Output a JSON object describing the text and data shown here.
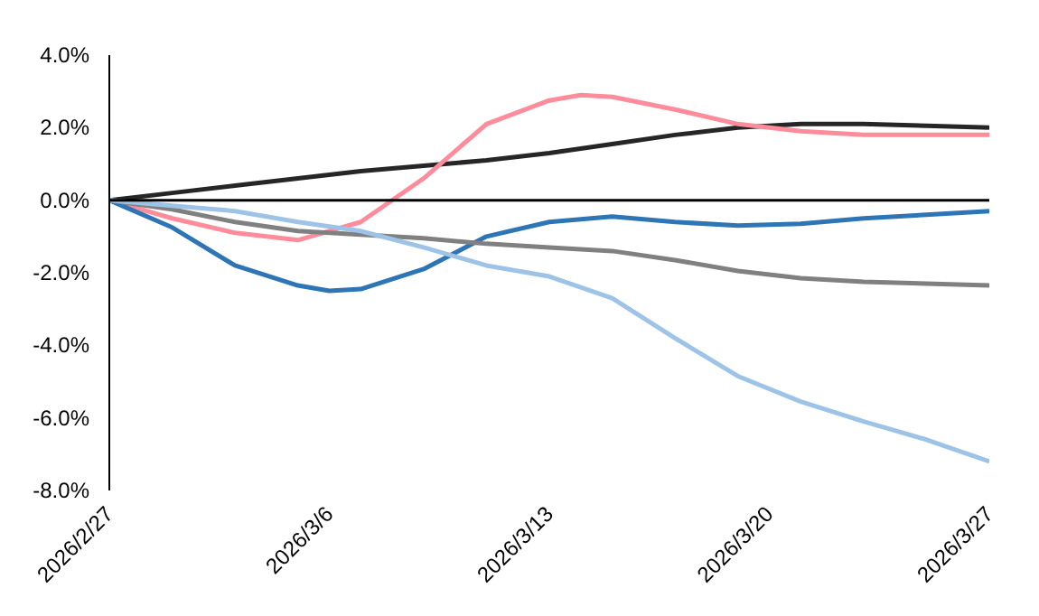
{
  "chart_data": {
    "type": "line",
    "xlim": [
      "2026-02-27",
      "2026-03-27"
    ],
    "xticks": [
      {
        "value": "2026-02-27",
        "label": "2026/2/27"
      },
      {
        "value": "2026-03-06",
        "label": "2026/3/6"
      },
      {
        "value": "2026-03-13",
        "label": "2026/3/13"
      },
      {
        "value": "2026-03-20",
        "label": "2026/3/20"
      },
      {
        "value": "2026-03-27",
        "label": "2026/3/27"
      }
    ],
    "ylim": [
      -8,
      4
    ],
    "yticks": [
      {
        "value": -8,
        "label": "-8.0%"
      },
      {
        "value": -6,
        "label": "-6.0%"
      },
      {
        "value": -4,
        "label": "-4.0%"
      },
      {
        "value": -2,
        "label": "-2.0%"
      },
      {
        "value": 0,
        "label": "0.0%"
      },
      {
        "value": 2,
        "label": "2.0%"
      },
      {
        "value": 4,
        "label": "4.0%"
      }
    ],
    "line_style": "solid",
    "ref_lines": [
      {
        "axis": "y",
        "value": 0,
        "color": "#000000"
      }
    ],
    "x": [
      "2026-02-27",
      "2026-03-01",
      "2026-03-03",
      "2026-03-05",
      "2026-03-07",
      "2026-03-09",
      "2026-03-11",
      "2026-03-13",
      "2026-03-15",
      "2026-03-17",
      "2026-03-19",
      "2026-03-21",
      "2026-03-23",
      "2026-03-25",
      "2026-03-27"
    ],
    "series": [
      {
        "color": "#262626",
        "values": [
          0,
          0.2,
          0.4,
          0.6,
          0.8,
          0.95,
          1.1,
          1.3,
          1.55,
          1.8,
          2.0,
          2.1,
          2.1,
          2.05,
          2.0
        ]
      },
      {
        "color": "#ff8c9b",
        "x": [
          "2026-02-27",
          "2026-03-01",
          "2026-03-03",
          "2026-03-05",
          "2026-03-07",
          "2026-03-09",
          "2026-03-11",
          "2026-03-13",
          "2026-03-14",
          "2026-03-15",
          "2026-03-17",
          "2026-03-19",
          "2026-03-21",
          "2026-03-23",
          "2026-03-25",
          "2026-03-27"
        ],
        "values": [
          0,
          -0.5,
          -0.9,
          -1.1,
          -0.6,
          0.6,
          2.1,
          2.75,
          2.9,
          2.85,
          2.5,
          2.1,
          1.9,
          1.8,
          1.8,
          1.8
        ]
      },
      {
        "color": "#2e75b6",
        "x": [
          "2026-02-27",
          "2026-03-01",
          "2026-03-03",
          "2026-03-05",
          "2026-03-06",
          "2026-03-07",
          "2026-03-09",
          "2026-03-11",
          "2026-03-13",
          "2026-03-15",
          "2026-03-17",
          "2026-03-19",
          "2026-03-21",
          "2026-03-23",
          "2026-03-25",
          "2026-03-27"
        ],
        "values": [
          0,
          -0.75,
          -1.8,
          -2.35,
          -2.5,
          -2.45,
          -1.9,
          -1.0,
          -0.6,
          -0.45,
          -0.6,
          -0.7,
          -0.65,
          -0.5,
          -0.4,
          -0.3
        ]
      },
      {
        "color": "#808080",
        "values": [
          0,
          -0.25,
          -0.6,
          -0.85,
          -0.95,
          -1.05,
          -1.2,
          -1.3,
          -1.4,
          -1.65,
          -1.95,
          -2.15,
          -2.25,
          -2.3,
          -2.35
        ]
      },
      {
        "color": "#9dc3e6",
        "values": [
          0,
          -0.15,
          -0.3,
          -0.6,
          -0.85,
          -1.3,
          -1.8,
          -2.1,
          -2.7,
          -3.8,
          -4.85,
          -5.55,
          -6.1,
          -6.6,
          -7.2
        ]
      }
    ]
  }
}
